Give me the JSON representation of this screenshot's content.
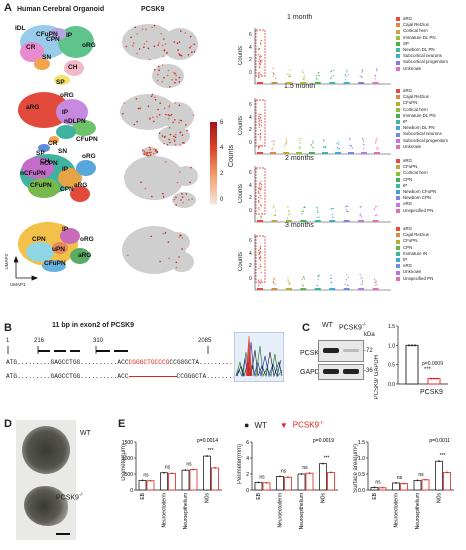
{
  "panelA": {
    "letter": "A",
    "titles": {
      "organoid": "Human Cerebral Organoid",
      "gene": "PCSK9"
    },
    "umap_axis": {
      "x": "UMAP1",
      "y": "UMAP2"
    },
    "colorbar": {
      "title": "Counts",
      "ticks": [
        "6",
        "4",
        "2",
        "0"
      ]
    },
    "timepoints": [
      {
        "label": "1 month",
        "umap_labels": [
          "IDL",
          "CFuPN",
          "CR",
          "IP",
          "SN",
          "CH",
          "SP",
          "oRG",
          "CPN"
        ],
        "violin_ylabel": "Counts",
        "violin_yticks": [
          "6",
          "4",
          "2",
          "0"
        ],
        "legend": [
          "aRG",
          "Cajal Retzius",
          "Cortical hem",
          "Immature DL PN",
          "SP",
          "Newborn DL PN",
          "Subcortical neurons",
          "Subcortical progenitors",
          "Unknown"
        ],
        "legend_colors": [
          "#e8493f",
          "#d4884a",
          "#c9a93b",
          "#9bbf3c",
          "#47b24c",
          "#3fb89b",
          "#45acd6",
          "#8b7ad8",
          "#d872c8"
        ]
      },
      {
        "label": "1.5 month",
        "umap_labels": [
          "oRG",
          "aRG",
          "IP",
          "nDLPN",
          "CFuPN",
          "CR",
          "SN",
          "SP",
          "CH"
        ],
        "violin_ylabel": "Counts",
        "violin_yticks": [
          "6",
          "4",
          "2",
          "0"
        ],
        "legend": [
          "aRG",
          "Cajal Retzius",
          "CFuPN",
          "Cortical hem",
          "Immature DL PN",
          "IP",
          "Newborn DL PN",
          "Subcortical neurons",
          "Subcortical progenitors",
          "Unknown"
        ],
        "legend_colors": [
          "#e8493f",
          "#d58a45",
          "#c2a935",
          "#8dbd3a",
          "#46b24d",
          "#3db59f",
          "#3fa9d5",
          "#7d86dd",
          "#c476d7",
          "#e06fae"
        ]
      },
      {
        "label": "2 months",
        "umap_labels": [
          "nCPN",
          "nCFuPN",
          "CFuPN",
          "IP",
          "oRG",
          "aRG",
          "CPN"
        ],
        "violin_ylabel": "Counts",
        "violin_yticks": [
          "6",
          "4",
          "2",
          "0"
        ],
        "legend": [
          "aRG",
          "CFuPN",
          "Cortical hem",
          "CPN",
          "IP",
          "Newborn CFuPN",
          "Newborn CPN",
          "oRG",
          "Unspecified PN"
        ],
        "legend_colors": [
          "#e8493f",
          "#c9a33a",
          "#92bd3a",
          "#3fb357",
          "#3cb6a4",
          "#3ea5d5",
          "#7d86dd",
          "#c476d7",
          "#e06fae"
        ]
      },
      {
        "label": "3 months",
        "umap_labels": [
          "IP",
          "oRG",
          "CPN",
          "uPN",
          "aRG",
          "CFuPN"
        ],
        "violin_ylabel": "Counts",
        "violin_yticks": [
          "6",
          "4",
          "2",
          "0"
        ],
        "legend": [
          "aRG",
          "Cajal Retzius",
          "CFuPN",
          "CPN",
          "Immature IN",
          "IP",
          "oRG",
          "Unknown",
          "Unspecified PN"
        ],
        "legend_colors": [
          "#e8493f",
          "#cf8f3d",
          "#b3ad34",
          "#5db74a",
          "#3cb39b",
          "#3ea8d6",
          "#6e8fe0",
          "#b47ad9",
          "#e06fae"
        ]
      }
    ]
  },
  "panelB": {
    "letter": "B",
    "title": "11 bp in exon2 of PCSK9",
    "positions": [
      "1",
      "216",
      "310",
      "2085"
    ],
    "wt_seq": {
      "prefix": "ATG.........GAGCCTGG..........ACC",
      "red": "CGGGCTGCCCG",
      "suffix": "CCGGGCTA..........TGA"
    },
    "ko_seq": {
      "prefix": "ATG.........GAGCCTGG..........ACC",
      "red": "",
      "suffix": "CCGGGCTA..........TGA"
    }
  },
  "panelC": {
    "letter": "C",
    "blot_labels": {
      "wt": "WT",
      "ko": "PCSK9",
      "ko_sup": "-/-",
      "kda": "kDa"
    },
    "bands": [
      "PCSK9",
      "GAPDH"
    ],
    "kda_values": [
      "-72",
      "-36"
    ],
    "chart_data": {
      "type": "bar",
      "categories": [
        "WT",
        "PCSK9-/-"
      ],
      "values": [
        1.0,
        0.14
      ],
      "ylabel": "PCSK9/ GAPDH",
      "xlabel": "PCSK9",
      "ylim": [
        0,
        1.5
      ],
      "yticks": [
        "0.0",
        "0.5",
        "1.0",
        "1.5"
      ],
      "annotation": "p=0.0009",
      "stars": "***",
      "colors": [
        "#222222",
        "#e0231c"
      ]
    }
  },
  "panelD": {
    "letter": "D",
    "labels": {
      "wt": "WT",
      "ko": "PCSK9",
      "ko_sup": "-/-"
    }
  },
  "panelE": {
    "letter": "E",
    "legend": {
      "wt": "WT",
      "ko": "PCSK9",
      "ko_sup": "-/-"
    },
    "categories": [
      "EB",
      "Neuroectoderm",
      "Neuroepithelium",
      "NOs"
    ],
    "chart_data": [
      {
        "type": "bar",
        "ylabel": "Diameter(μm)",
        "yticks": [
          "0",
          "500",
          "1000",
          "1500"
        ],
        "ylim": [
          0,
          1500
        ],
        "categories": [
          "EB",
          "Neuroectoderm",
          "Neuroepithelium",
          "NOs"
        ],
        "series": [
          {
            "name": "WT",
            "values": [
              300,
              540,
              620,
              1060
            ]
          },
          {
            "name": "PCSK9-/-",
            "values": [
              290,
              520,
              640,
              690
            ]
          }
        ],
        "sig": [
          "ns",
          "ns",
          "ns",
          "***"
        ],
        "pvalue": "p=0.0014"
      },
      {
        "type": "bar",
        "ylabel": "Perimeter(mm)",
        "yticks": [
          "0",
          "2",
          "4",
          "6"
        ],
        "ylim": [
          0,
          6
        ],
        "categories": [
          "EB",
          "Neuroectoderm",
          "Neuroepithelium",
          "NOs"
        ],
        "series": [
          {
            "name": "WT",
            "values": [
              0.95,
              1.7,
              2.0,
              3.3
            ]
          },
          {
            "name": "PCSK9-/-",
            "values": [
              0.9,
              1.6,
              2.1,
              2.2
            ]
          }
        ],
        "sig": [
          "ns",
          "ns",
          "ns",
          "***"
        ],
        "pvalue": "p=0.0019"
      },
      {
        "type": "bar",
        "ylabel": "Surface area(μm²)",
        "yticks": [
          "0.0",
          "0.5",
          "1.0",
          "1.5"
        ],
        "ylim": [
          0,
          1.5
        ],
        "categories": [
          "EB",
          "Neuroectoderm",
          "Neuroepithelium",
          "NOs"
        ],
        "series": [
          {
            "name": "WT",
            "values": [
              0.08,
              0.22,
              0.3,
              0.9
            ]
          },
          {
            "name": "PCSK9-/-",
            "values": [
              0.07,
              0.2,
              0.32,
              0.55
            ]
          }
        ],
        "sig": [
          "ns",
          "ns",
          "ns",
          "***"
        ],
        "pvalue": "p=0.0011"
      }
    ]
  }
}
